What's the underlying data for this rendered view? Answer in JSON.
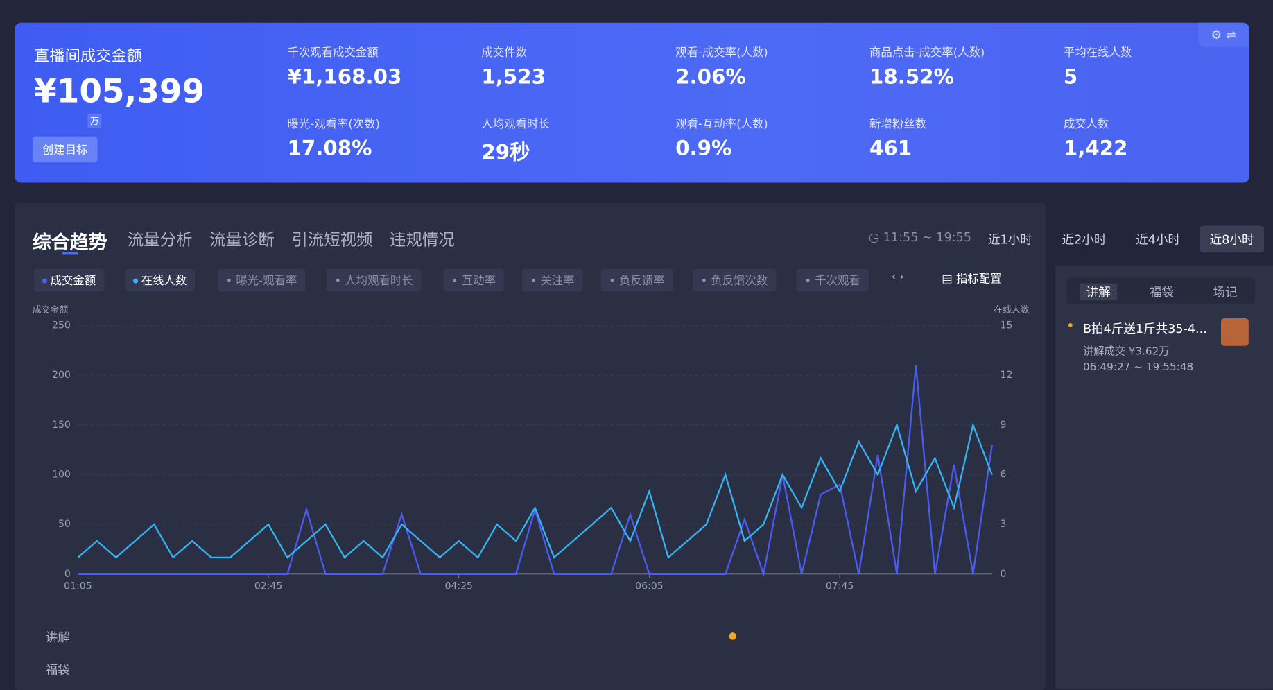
{
  "header": {
    "title": "直播间成交金额",
    "amount": "¥105,399",
    "unit": "万",
    "button": "创建目标",
    "metrics": [
      {
        "label": "千次观看成交金额",
        "value": "¥1,168.03"
      },
      {
        "label": "成交件数",
        "value": "1,523"
      },
      {
        "label": "观看-成交率(人数)",
        "value": "2.06%"
      },
      {
        "label": "商品点击-成交率(人数)",
        "value": "18.52%"
      },
      {
        "label": "平均在线人数",
        "value": "5"
      },
      {
        "label": "曝光-观看率(次数)",
        "value": "17.08%"
      },
      {
        "label": "人均观看时长",
        "value": "29秒"
      },
      {
        "label": "观看-互动率(人数)",
        "value": "0.9%"
      },
      {
        "label": "新增粉丝数",
        "value": "461"
      },
      {
        "label": "成交人数",
        "value": "1,422"
      }
    ]
  },
  "tabs": [
    "综合趋势",
    "流量分析",
    "流量诊断",
    "引流短视频",
    "违规情况"
  ],
  "time_range": "11:55 ~ 19:55",
  "range_buttons": [
    "近1小时",
    "近2小时",
    "近4小时",
    "近8小时"
  ],
  "metric_pills": [
    "曝光-观看率",
    "人均观看时长",
    "互动率",
    "关注率",
    "负反馈率",
    "负反馈次数",
    "千次观看"
  ],
  "config_button": "指标配置",
  "chart_data": {
    "type": "line",
    "y_label": "成交金额",
    "y2_label": "在线人数",
    "x": [
      65,
      75,
      85,
      95,
      105,
      115,
      125,
      135,
      145,
      155,
      165,
      175,
      185,
      195,
      205,
      215,
      225,
      235,
      245,
      255,
      265,
      275,
      285,
      295,
      305,
      315,
      325,
      335,
      345,
      355,
      365,
      375,
      385,
      395,
      405,
      415,
      425,
      435,
      445,
      455,
      465,
      475,
      485,
      495,
      505,
      515,
      525,
      535,
      545
    ],
    "xlim": [
      65,
      545
    ],
    "xticks": [
      {
        "value": 65,
        "label": "01:05"
      },
      {
        "value": 165,
        "label": "02:45"
      },
      {
        "value": 265,
        "label": "04:25"
      },
      {
        "value": 365,
        "label": "06:05"
      },
      {
        "value": 465,
        "label": "07:45"
      }
    ],
    "ylim": [
      0,
      250
    ],
    "yticks": [
      0,
      50,
      100,
      150,
      200,
      250
    ],
    "y2lim": [
      0,
      15
    ],
    "y2ticks": [
      0,
      3,
      6,
      9,
      12,
      15
    ],
    "grid": true,
    "series": [
      {
        "name": "成交金额",
        "color": "#4a5cf0",
        "values": [
          0,
          0,
          0,
          0,
          0,
          0,
          0,
          0,
          0,
          0,
          0,
          0,
          65,
          0,
          0,
          0,
          0,
          60,
          0,
          0,
          0,
          0,
          0,
          0,
          65,
          0,
          0,
          0,
          0,
          60,
          0,
          0,
          0,
          0,
          0,
          55,
          0,
          100,
          0,
          80,
          90,
          0,
          120,
          0,
          210,
          0,
          110,
          0,
          130
        ]
      },
      {
        "name": "在线人数",
        "color": "#35b3f0",
        "axis": "y2",
        "values": [
          1,
          2,
          1,
          2,
          3,
          1,
          2,
          1,
          1,
          2,
          3,
          1,
          2,
          3,
          1,
          2,
          1,
          3,
          2,
          1,
          2,
          1,
          3,
          2,
          4,
          1,
          2,
          3,
          4,
          2,
          5,
          1,
          2,
          3,
          6,
          2,
          3,
          6,
          4,
          7,
          5,
          8,
          6,
          9,
          5,
          7,
          4,
          9,
          6
        ]
      }
    ]
  },
  "timeline_rows": [
    "讲解",
    "福袋"
  ],
  "side_tabs": [
    "讲解",
    "福袋",
    "场记"
  ],
  "side_item": {
    "title": "B拍4斤送1斤共35-4...",
    "deal": "讲解成交 ¥3.62万",
    "time": "06:49:27 ~ 19:55:48"
  }
}
